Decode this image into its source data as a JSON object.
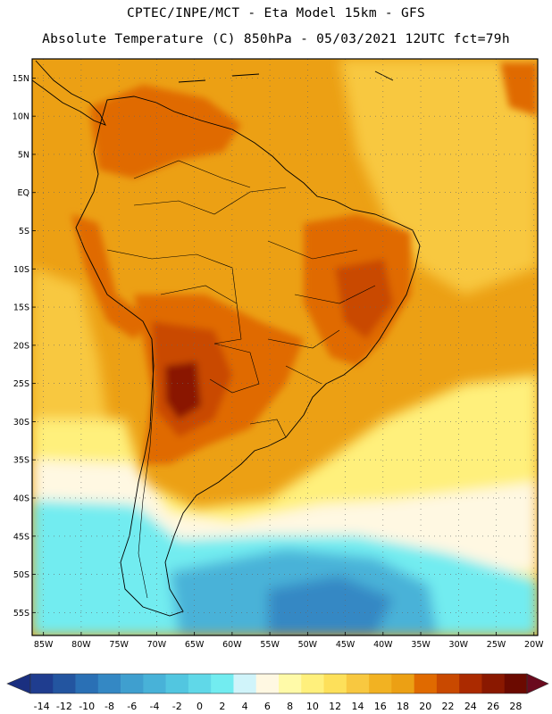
{
  "header": {
    "line1": "CPTEC/INPE/MCT -  Eta Model 15km - GFS",
    "line2": "Absolute Temperature (C) 850hPa - 05/03/2021 12UTC fct=79h"
  },
  "map": {
    "lat_labels": [
      "15N",
      "10N",
      "5N",
      "EQ",
      "5S",
      "10S",
      "15S",
      "20S",
      "25S",
      "30S",
      "35S",
      "40S",
      "45S",
      "50S",
      "55S"
    ],
    "lat_values": [
      15,
      10,
      5,
      0,
      -5,
      -10,
      -15,
      -20,
      -25,
      -30,
      -35,
      -40,
      -45,
      -50,
      -55
    ],
    "lon_labels": [
      "85W",
      "80W",
      "75W",
      "70W",
      "65W",
      "60W",
      "55W",
      "50W",
      "45W",
      "40W",
      "35W",
      "30W",
      "25W",
      "20W"
    ],
    "lon_values": [
      -85,
      -80,
      -75,
      -70,
      -65,
      -60,
      -55,
      -50,
      -45,
      -40,
      -35,
      -30,
      -25,
      -20
    ],
    "lat_range": [
      -58,
      17.5
    ],
    "lon_range": [
      -86.5,
      -19.5
    ]
  },
  "colorbar": {
    "labels": [
      "-14",
      "-12",
      "-10",
      "-8",
      "-6",
      "-4",
      "-2",
      "0",
      "2",
      "4",
      "6",
      "8",
      "10",
      "12",
      "14",
      "16",
      "18",
      "20",
      "22",
      "24",
      "26",
      "28"
    ],
    "colors": [
      "#1f3d8f",
      "#2355a0",
      "#2a70b5",
      "#3488c4",
      "#3f9fcf",
      "#48b2d8",
      "#52c6e0",
      "#60d8e8",
      "#72ecf0",
      "#d0f4fa",
      "#fff8e2",
      "#fffaa8",
      "#fff07c",
      "#fde05a",
      "#f8c840",
      "#f2b222",
      "#eca014",
      "#e06a00",
      "#c94900",
      "#ab2a00",
      "#8a1800",
      "#6b0a00"
    ],
    "extend_low_color": "#1a2f80",
    "extend_high_color": "#6a0a1e"
  },
  "colors": {
    "warm_base": "#eca014",
    "hot": "#e06a00",
    "hotter": "#c94900",
    "hottest": "#8a1800",
    "mild": "#f8c840",
    "cool_yellow": "#fff07c",
    "pale": "#fff8e2",
    "cyan": "#72ecf0",
    "cold": "#48b2d8",
    "colder": "#3488c4"
  }
}
